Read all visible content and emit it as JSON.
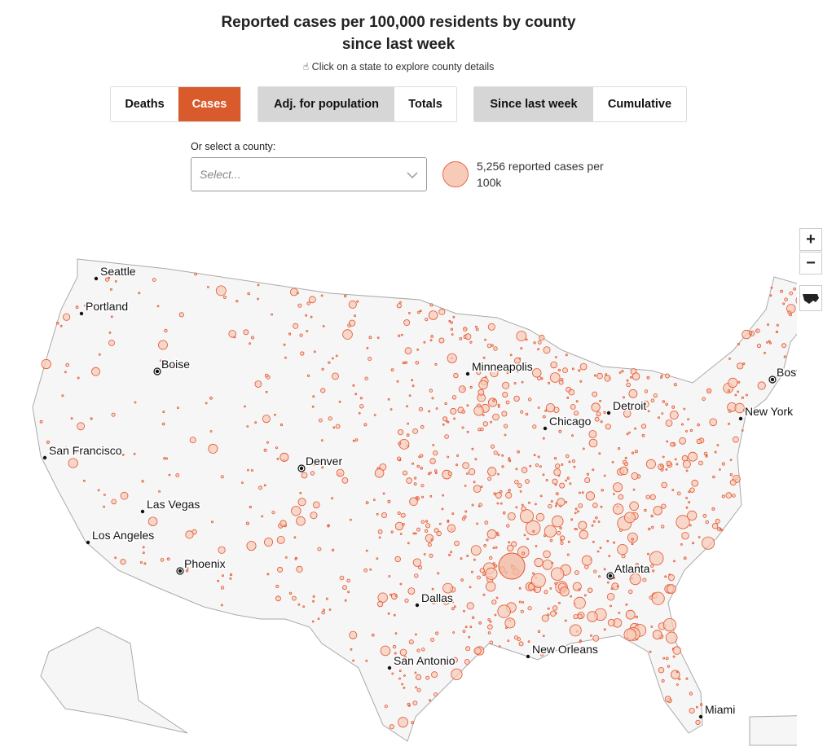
{
  "header": {
    "title": [
      "Reported cases per 100,000 residents by county",
      "since last week"
    ],
    "hint": "Click on a state to explore county details"
  },
  "toggles": [
    {
      "options": [
        "Deaths",
        "Cases"
      ],
      "active": 1,
      "active_color": "#d95a2b"
    },
    {
      "options": [
        "Adj. for population",
        "Totals"
      ],
      "active": 0,
      "active_color": "#d6d6d6"
    },
    {
      "options": [
        "Since last week",
        "Cumulative"
      ],
      "active": 0,
      "active_color": "#d6d6d6"
    }
  ],
  "county_select": {
    "label": "Or select a county:",
    "placeholder": "Select..."
  },
  "legend": {
    "text": "5,256 reported cases per 100k"
  },
  "map": {
    "zoom_controls": [
      "+",
      "−"
    ],
    "cities": [
      "Seattle",
      "Portland",
      "Boise",
      "San Francisco",
      "Las Vegas",
      "Los Angeles",
      "Phoenix",
      "Denver",
      "Dallas",
      "San Antonio",
      "Minneapolis",
      "Chicago",
      "Detroit",
      "Atlanta",
      "New Orleans",
      "Miami",
      "Boston",
      "New York"
    ]
  }
}
